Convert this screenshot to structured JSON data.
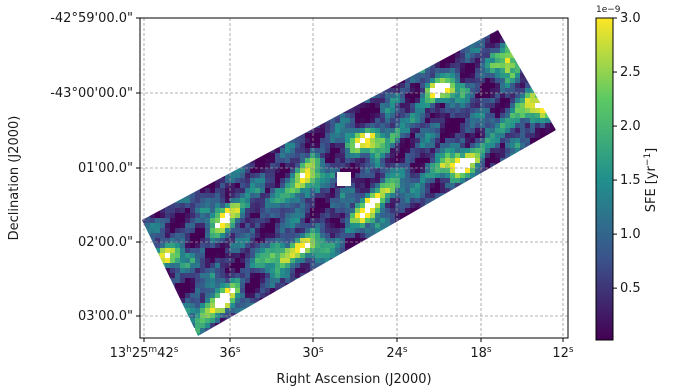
{
  "chart_data": {
    "type": "heatmap",
    "title": "",
    "xlabel": "Right Ascension (J2000)",
    "ylabel": "Declination (J2000)",
    "grid": true,
    "x_ticks": [
      {
        "parts": [
          "13",
          "h",
          "25",
          "m",
          "42",
          "s"
        ]
      },
      {
        "parts": [
          "36",
          "s"
        ]
      },
      {
        "parts": [
          "30",
          "s"
        ]
      },
      {
        "parts": [
          "24",
          "s"
        ]
      },
      {
        "parts": [
          "18",
          "s"
        ]
      },
      {
        "parts": [
          "12",
          "s"
        ]
      }
    ],
    "y_ticks": [
      "-42°59'00.0\"",
      "-43°00'00.0\"",
      "01'00.0\"",
      "02'00.0\"",
      "03'00.0\""
    ],
    "colorbar": {
      "label": "SFE [yr",
      "label_sup": "−1",
      "label_end": "]",
      "exponent": "1e−9",
      "ticks": [
        "0.5",
        "1.0",
        "1.5",
        "2.0",
        "2.5",
        "3.0"
      ],
      "tick_values": [
        0.5,
        1.0,
        1.5,
        2.0,
        2.5,
        3.0
      ],
      "range": [
        0.02,
        3.0
      ],
      "colormap": "viridis",
      "colormap_stops": [
        "#440154",
        "#3b528b",
        "#21908d",
        "#5dc963",
        "#fde725"
      ]
    },
    "map_description": {
      "strip_orientation": "tilted roughly 30 degrees, low-left to upper-right",
      "features": [
        "two bright yellow filamentary bands",
        "white saturated pixels within bright bands",
        "small masked white square near center",
        "dark purple background within footprint"
      ]
    }
  }
}
